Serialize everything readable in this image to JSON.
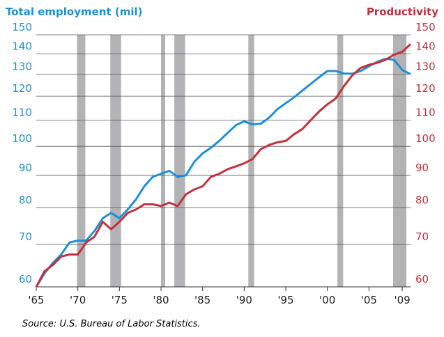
{
  "chart_data": {
    "type": "line",
    "source": "Source: U.S. Bureau of Labor Statistics.",
    "x": [
      1965,
      1966,
      1967,
      1968,
      1969,
      1970,
      1971,
      1972,
      1973,
      1974,
      1975,
      1976,
      1977,
      1978,
      1979,
      1980,
      1981,
      1982,
      1983,
      1984,
      1985,
      1986,
      1987,
      1988,
      1989,
      1990,
      1991,
      1992,
      1993,
      1994,
      1995,
      1996,
      1997,
      1998,
      1999,
      2000,
      2001,
      2002,
      2003,
      2004,
      2005,
      2006,
      2007,
      2008,
      2009,
      2010
    ],
    "series": [
      {
        "name": "Total employment (mil)",
        "color": "#1c8fd6",
        "axis": "y",
        "values": [
          60,
          63,
          65.5,
          67.5,
          70.5,
          71,
          71,
          73.5,
          77,
          78.5,
          77,
          79.5,
          82.5,
          86.5,
          89.5,
          90.5,
          91.5,
          89.5,
          90,
          94.5,
          97.5,
          99.5,
          102,
          105,
          108,
          109.5,
          108.3,
          108.6,
          111,
          114.5,
          117,
          119.5,
          122.5,
          125.5,
          128.5,
          131.5,
          131.5,
          130.3,
          130.2,
          131.5,
          133.8,
          136,
          137.5,
          137,
          132,
          130
        ]
      },
      {
        "name": "Productivity",
        "color": "#c4303c",
        "axis": "y2",
        "values": [
          60,
          63.5,
          65,
          67,
          67.5,
          67.5,
          70.5,
          72,
          76,
          74,
          76,
          78.5,
          79.5,
          81,
          81,
          80.5,
          81.5,
          80.5,
          84,
          85.5,
          86.5,
          89.5,
          90.5,
          92,
          93,
          94,
          95.5,
          99,
          100.5,
          101.5,
          102,
          104.5,
          106.5,
          110,
          113.5,
          116.5,
          119,
          124.5,
          129.5,
          133,
          134.5,
          135.5,
          137,
          139.5,
          141,
          145
        ]
      }
    ],
    "recessions": [
      [
        1969.9,
        1970.9
      ],
      [
        1973.9,
        1975.2
      ],
      [
        1980.0,
        1980.5
      ],
      [
        1981.6,
        1982.9
      ],
      [
        1990.5,
        1991.2
      ],
      [
        2001.2,
        2001.9
      ],
      [
        2007.9,
        2009.5
      ]
    ],
    "recession_color": "#b3b3b5",
    "xlim": [
      1965,
      2010
    ],
    "xticks": [
      {
        "value": 1965,
        "label": "'65"
      },
      {
        "value": 1970,
        "label": "'70"
      },
      {
        "value": 1975,
        "label": "'75"
      },
      {
        "value": 1980,
        "label": "'80"
      },
      {
        "value": 1985,
        "label": "'85"
      },
      {
        "value": 1990,
        "label": "'90"
      },
      {
        "value": 1995,
        "label": "'95"
      },
      {
        "value": 2000,
        "label": "'00"
      },
      {
        "value": 2005,
        "label": "'05"
      },
      {
        "value": 2009,
        "label": "'09"
      }
    ],
    "ylim": [
      60,
      150
    ],
    "yticks": [
      60,
      70,
      80,
      90,
      100,
      110,
      120,
      130,
      140,
      150
    ],
    "y2lim": [
      60,
      150
    ],
    "y2ticks": [
      60,
      70,
      80,
      90,
      100,
      110,
      120,
      130,
      140,
      150
    ],
    "log_scale": true,
    "grid": true
  }
}
